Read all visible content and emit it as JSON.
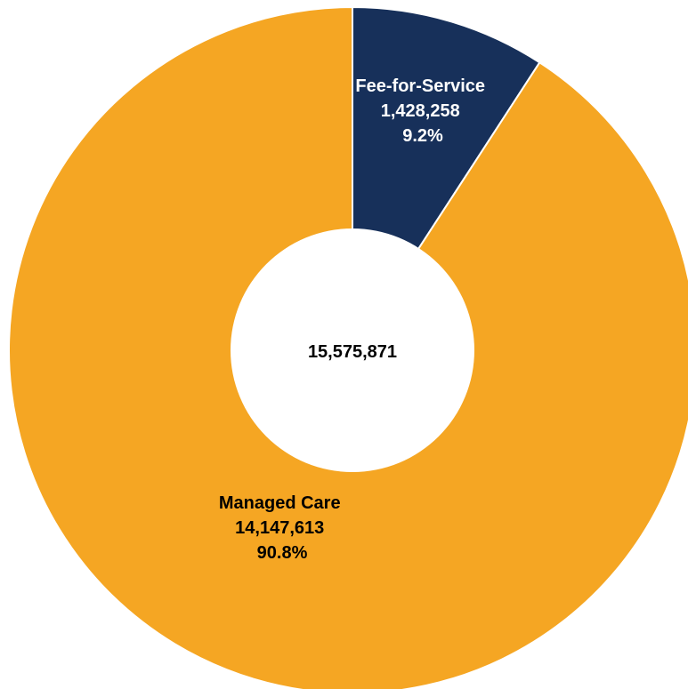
{
  "chart_data": {
    "type": "pie",
    "variant": "donut",
    "title": "",
    "total_label": "15,575,871",
    "slices": [
      {
        "name": "Fee-for-Service",
        "value": 1428258,
        "value_label": "1,428,258",
        "percent_label": "9.2%",
        "percent": 9.2,
        "color": "#17305a",
        "label_color": "#ffffff"
      },
      {
        "name": "Managed Care",
        "value": 14147613,
        "value_label": "14,147,613",
        "percent_label": "90.8%",
        "percent": 90.8,
        "color": "#f5a623",
        "label_color": "#000000"
      }
    ],
    "start_angle": "12 o'clock",
    "direction": "clockwise",
    "legend": "none"
  }
}
